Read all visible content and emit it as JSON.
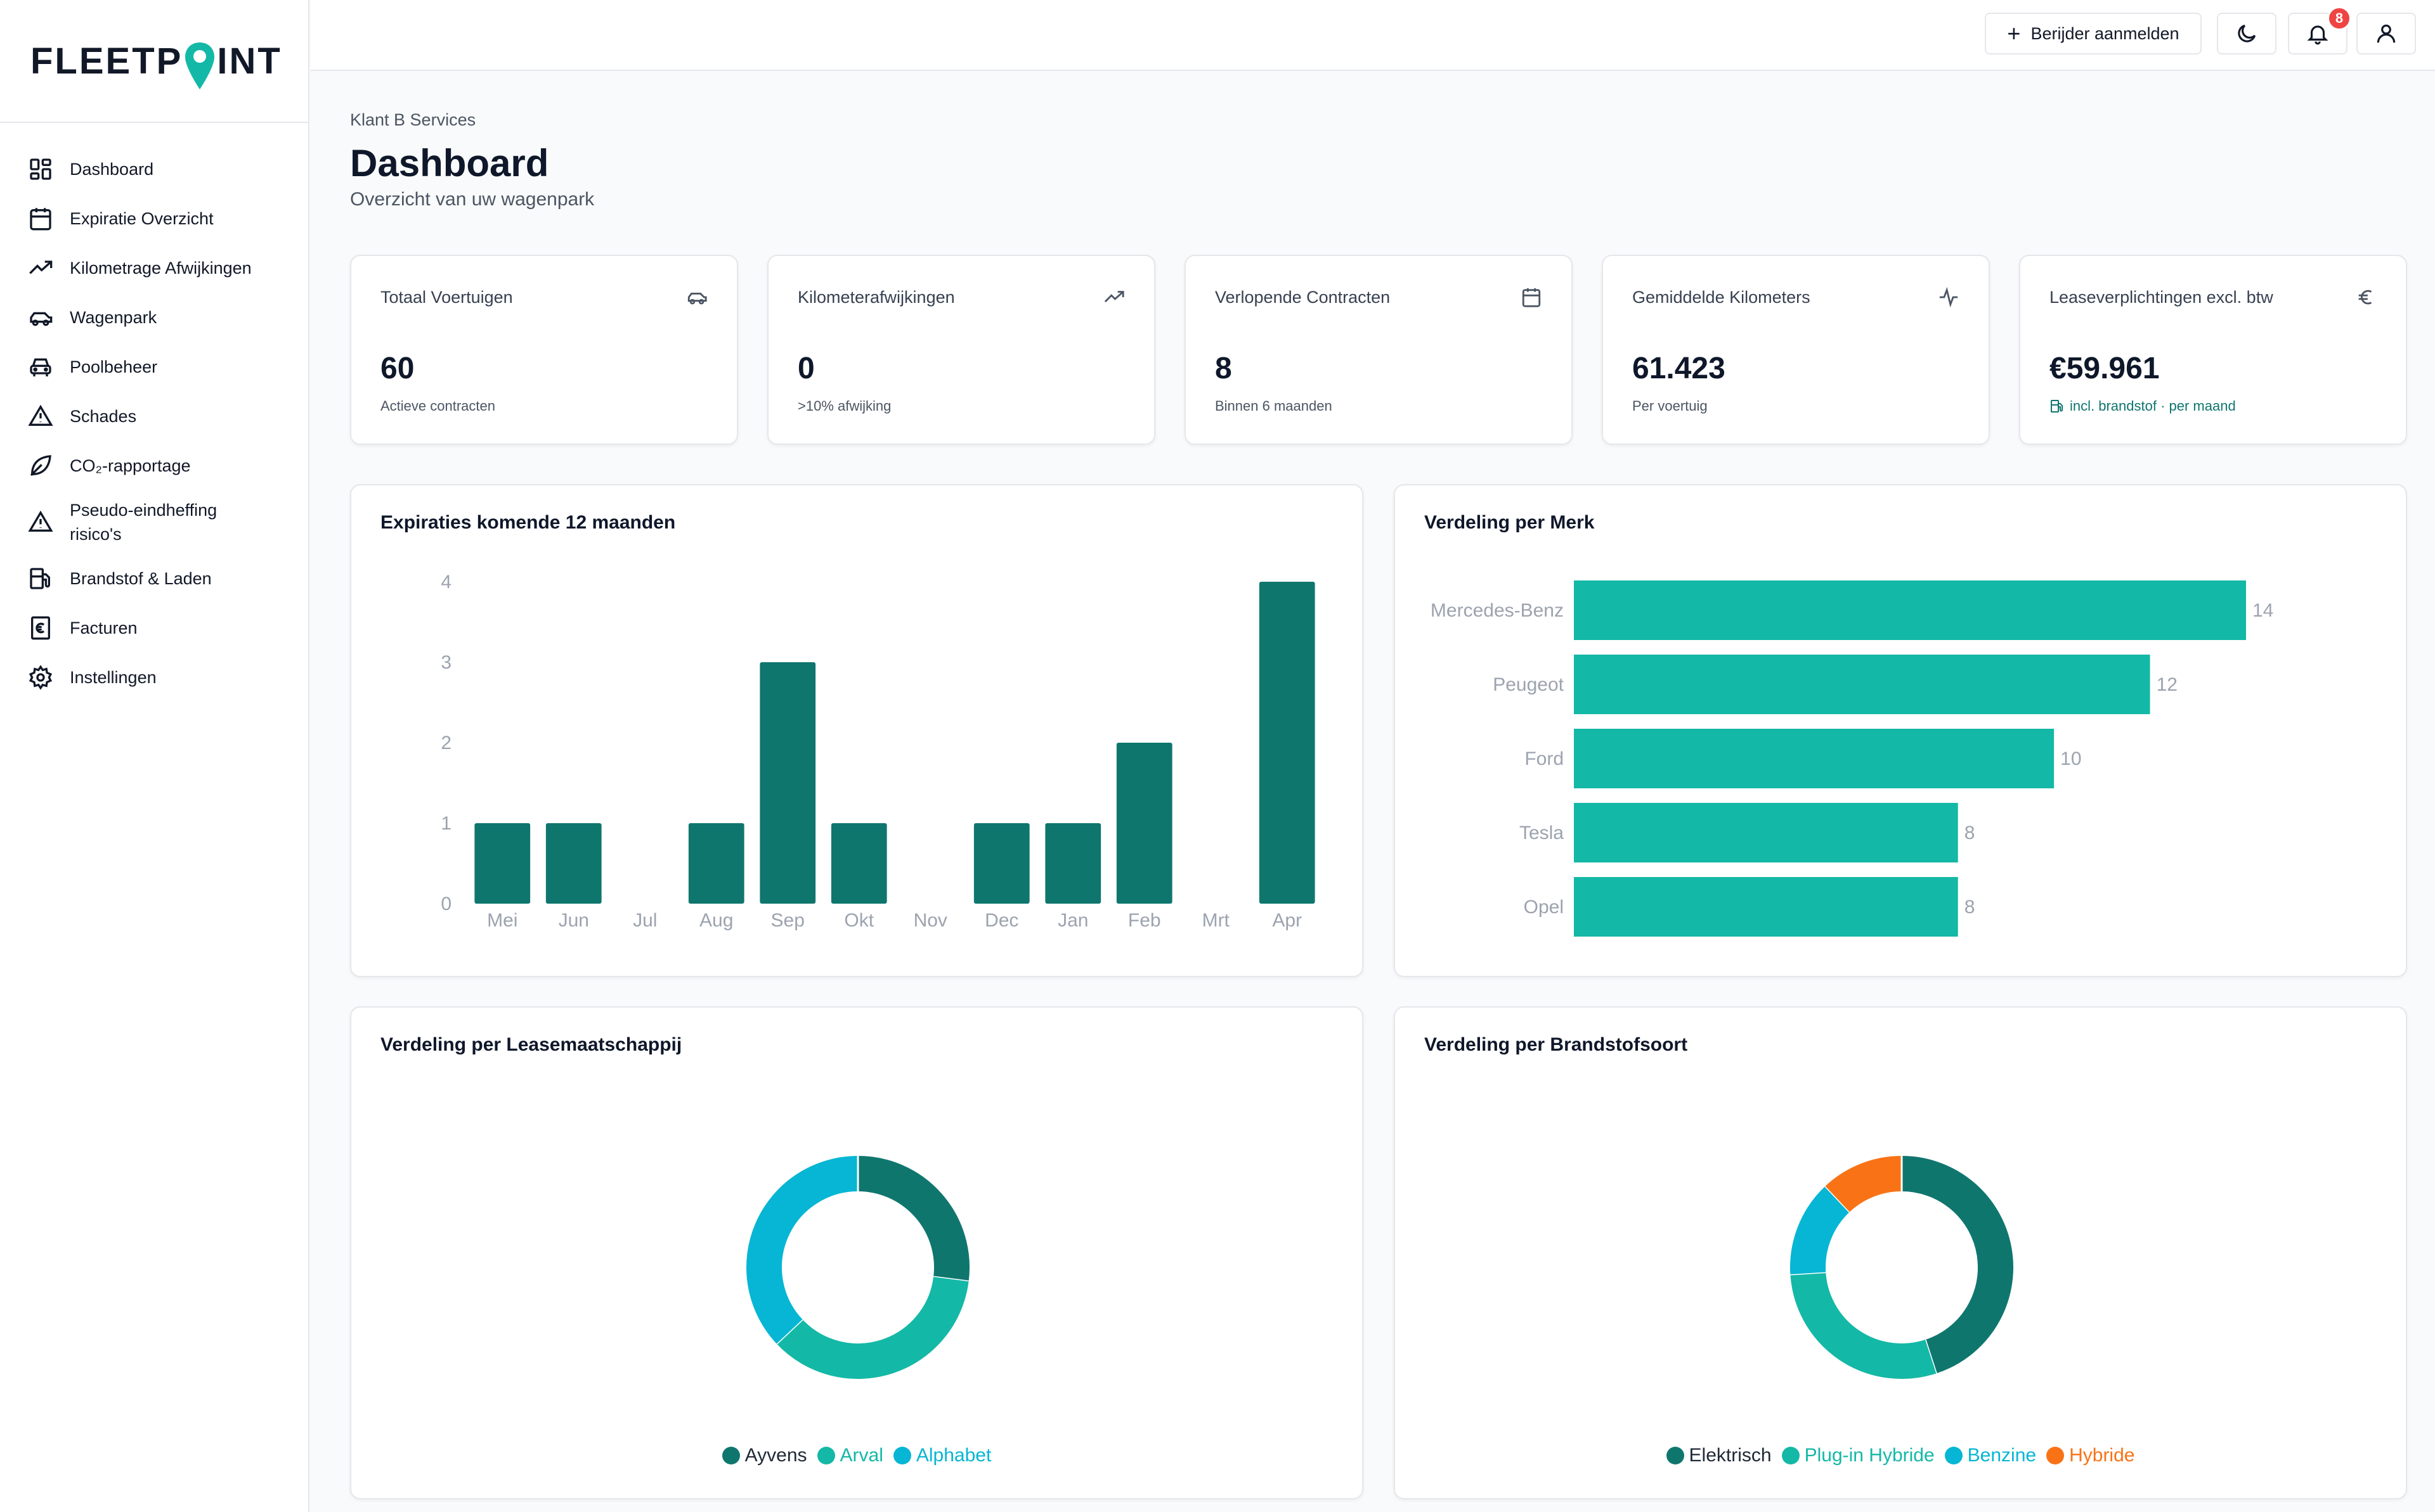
{
  "app": {
    "logo_left": "FLEETP",
    "logo_right": "INT"
  },
  "sidebar": {
    "items": [
      {
        "label": "Dashboard",
        "icon": "dashboard-icon"
      },
      {
        "label": "Expiratie Overzicht",
        "icon": "calendar-icon"
      },
      {
        "label": "Kilometrage Afwijkingen",
        "icon": "trending-up-icon"
      },
      {
        "label": "Wagenpark",
        "icon": "car-icon"
      },
      {
        "label": "Poolbeheer",
        "icon": "car-front-icon"
      },
      {
        "label": "Schades",
        "icon": "warning-icon"
      },
      {
        "label": "CO₂-rapportage",
        "icon": "leaf-icon"
      },
      {
        "label_line1": "Pseudo-eindheffing",
        "label_line2": "risico's",
        "icon": "warning-icon"
      },
      {
        "label": "Brandstof & Laden",
        "icon": "fuel-icon"
      },
      {
        "label": "Facturen",
        "icon": "invoice-icon"
      },
      {
        "label": "Instellingen",
        "icon": "gear-icon"
      }
    ]
  },
  "topbar": {
    "register_label": "Berijder aanmelden",
    "notification_count": "8"
  },
  "header": {
    "breadcrumb": "Klant B Services",
    "title": "Dashboard",
    "subtitle": "Overzicht van uw wagenpark"
  },
  "stats": [
    {
      "title": "Totaal Voertuigen",
      "value": "60",
      "sub": "Actieve contracten",
      "icon": "car-icon"
    },
    {
      "title": "Kilometerafwijkingen",
      "value": "0",
      "sub": ">10% afwijking",
      "icon": "trending-up-icon"
    },
    {
      "title": "Verlopende Contracten",
      "value": "8",
      "sub": "Binnen 6 maanden",
      "icon": "calendar-icon"
    },
    {
      "title": "Gemiddelde Kilometers",
      "value": "61.423",
      "sub": "Per voertuig",
      "icon": "activity-icon"
    },
    {
      "title": "Leaseverplichtingen excl. btw",
      "value": "€59.961",
      "sub": "incl. brandstof · per maand",
      "icon": "euro-icon"
    }
  ],
  "charts": {
    "expirations_title": "Expiraties komende 12 maanden",
    "brands_title": "Verdeling per Merk",
    "lease_title": "Verdeling per Leasemaatschappij",
    "fuel_title": "Verdeling per Brandstofsoort"
  },
  "chart_data": [
    {
      "type": "bar",
      "title": "Expiraties komende 12 maanden",
      "categories": [
        "Mei",
        "Jun",
        "Jul",
        "Aug",
        "Sep",
        "Okt",
        "Nov",
        "Dec",
        "Jan",
        "Feb",
        "Mrt",
        "Apr"
      ],
      "values": [
        1,
        1,
        0,
        1,
        3,
        1,
        0,
        1,
        1,
        2,
        0,
        4
      ],
      "yticks": [
        "0",
        "1",
        "2",
        "3",
        "4"
      ],
      "ylim": [
        0,
        4
      ],
      "color": "#0f766e",
      "grid": false
    },
    {
      "type": "bar",
      "orientation": "horizontal",
      "title": "Verdeling per Merk",
      "categories": [
        "Mercedes-Benz",
        "Peugeot",
        "Ford",
        "Tesla",
        "Opel"
      ],
      "values": [
        14,
        12,
        10,
        8,
        8
      ],
      "color": "#14b8a6",
      "grid": false
    },
    {
      "type": "pie",
      "variant": "donut",
      "title": "Verdeling per Leasemaatschappij",
      "labels": [
        "Ayvens",
        "Arval",
        "Alphabet"
      ],
      "values": [
        27,
        36,
        37
      ],
      "colors": [
        "#0f766e",
        "#14b8a6",
        "#06b6d4"
      ],
      "legend": "bottom"
    },
    {
      "type": "pie",
      "variant": "donut",
      "title": "Verdeling per Brandstofsoort",
      "labels": [
        "Elektrisch",
        "Plug-in Hybride",
        "Benzine",
        "Hybride"
      ],
      "values": [
        45,
        29,
        14,
        12
      ],
      "colors": [
        "#0f766e",
        "#14b8a6",
        "#06b6d4",
        "#f97316"
      ],
      "legend": "bottom"
    }
  ]
}
